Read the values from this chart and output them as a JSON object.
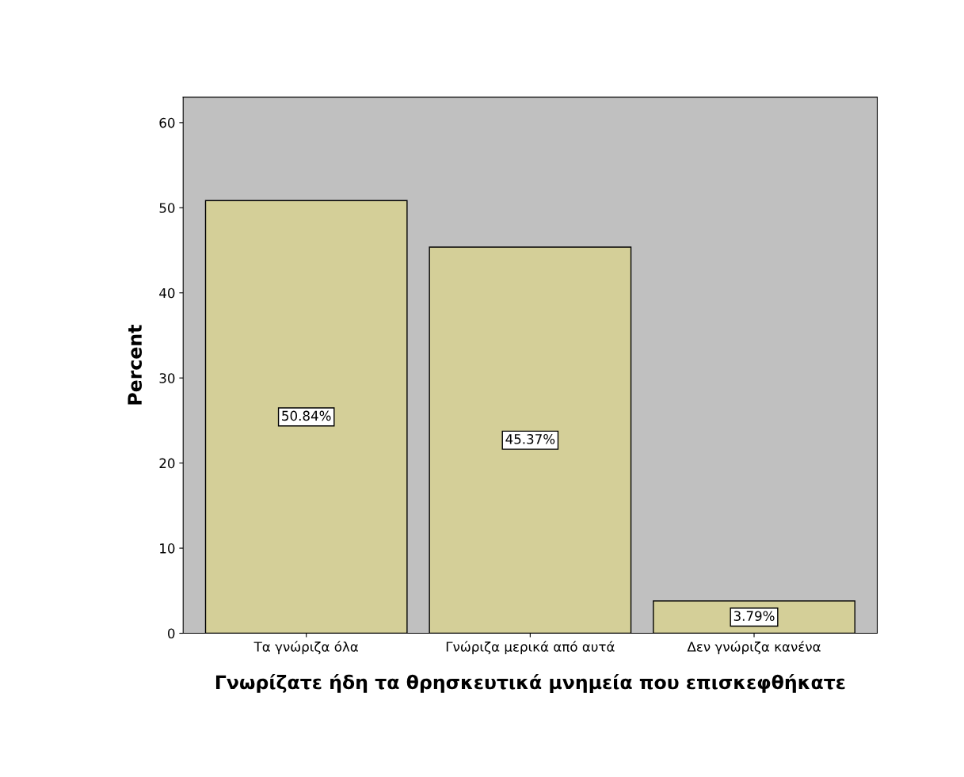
{
  "chart_data": {
    "type": "bar",
    "xlabel": "Γνωρίζατε ήδη τα θρησκευτικά μνημεία που επισκεφθήκατε",
    "ylabel": "Percent",
    "categories": [
      "Τα γνώριζα όλα",
      "Γνώριζα μερικά από αυτά",
      "Δεν γνώριζα κανένα"
    ],
    "values": [
      50.84,
      45.37,
      3.79
    ],
    "value_labels": [
      "50.84%",
      "45.37%",
      "3.79%"
    ],
    "color": "#d4cf98",
    "ylim": [
      0,
      63
    ],
    "yticks": [
      0,
      10,
      20,
      30,
      40,
      50,
      60
    ],
    "grid": false
  }
}
